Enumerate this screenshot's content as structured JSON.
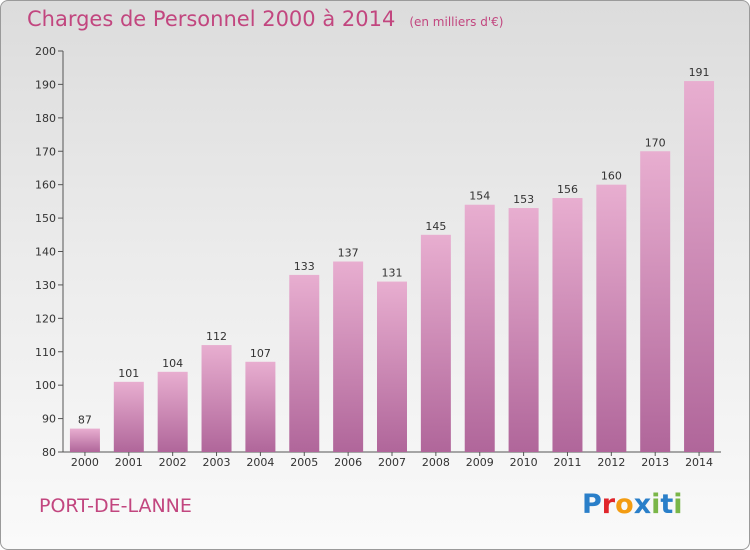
{
  "title": "Charges de Personnel 2000 à 2014",
  "subtitle": "(en milliers d'€)",
  "commune": "PORT-DE-LANNE",
  "logo": {
    "text": "Proxiti",
    "letters": [
      {
        "ch": "P",
        "color": "#2a7fc9"
      },
      {
        "ch": "r",
        "color": "#e0252b"
      },
      {
        "ch": "o",
        "color": "#f39c12"
      },
      {
        "ch": "x",
        "color": "#2a7fc9"
      },
      {
        "ch": "i",
        "color": "#7ab648"
      },
      {
        "ch": "t",
        "color": "#2a7fc9"
      },
      {
        "ch": "i",
        "color": "#7ab648"
      }
    ]
  },
  "colors": {
    "accent": "#c2467f",
    "bar_top": "#e8aed0",
    "bar_bottom": "#b0669a"
  },
  "chart_data": {
    "type": "bar",
    "title": "Charges de Personnel 2000 à 2014",
    "subtitle": "(en milliers d'€)",
    "categories": [
      "2000",
      "2001",
      "2002",
      "2003",
      "2004",
      "2005",
      "2006",
      "2007",
      "2008",
      "2009",
      "2010",
      "2011",
      "2012",
      "2013",
      "2014"
    ],
    "values": [
      87,
      101,
      104,
      112,
      107,
      133,
      137,
      131,
      145,
      154,
      153,
      156,
      160,
      170,
      191
    ],
    "ylim": [
      80,
      200
    ],
    "yticks": [
      80,
      90,
      100,
      110,
      120,
      130,
      140,
      150,
      160,
      170,
      180,
      190,
      200
    ],
    "xlabel": "",
    "ylabel": "",
    "grid": false,
    "legend": "none"
  }
}
